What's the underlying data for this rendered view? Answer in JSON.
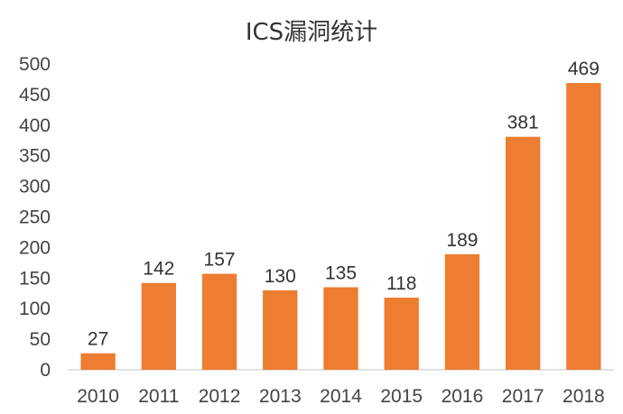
{
  "chart_data": {
    "type": "bar",
    "title": "ICS漏洞统计",
    "xlabel": "",
    "ylabel": "",
    "categories": [
      "2010",
      "2011",
      "2012",
      "2013",
      "2014",
      "2015",
      "2016",
      "2017",
      "2018"
    ],
    "values": [
      27,
      142,
      157,
      130,
      135,
      118,
      189,
      381,
      469
    ],
    "ylim": [
      0,
      500
    ],
    "yticks": [
      0,
      50,
      100,
      150,
      200,
      250,
      300,
      350,
      400,
      450,
      500
    ],
    "grid": false,
    "legend": "none",
    "bar_color": "#ED7D31"
  }
}
